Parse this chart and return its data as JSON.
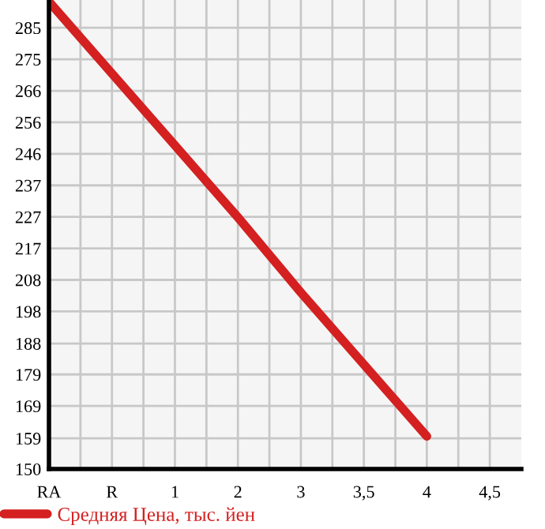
{
  "chart_data": {
    "type": "line",
    "categories": [
      "RA",
      "R",
      "1",
      "2",
      "3",
      "3,5",
      "4",
      "4,5"
    ],
    "series": [
      {
        "name": "Средняя Цена, тыс. йен",
        "color": "#d42020",
        "values": [
          293,
          271,
          249,
          227,
          204,
          182,
          160,
          null
        ]
      }
    ],
    "ylim": [
      150,
      293.5
    ],
    "yticks": [
      150,
      {
        "value": 159.4,
        "label": "159"
      },
      {
        "value": 169.29,
        "label": "169"
      },
      {
        "value": 178.93,
        "label": "179"
      },
      {
        "value": 188.4,
        "label": "188"
      },
      {
        "value": 198.21,
        "label": "198"
      },
      {
        "value": 207.86,
        "label": "208"
      },
      {
        "value": 217.5,
        "label": "217"
      },
      {
        "value": 227.14,
        "label": "227"
      },
      {
        "value": 236.79,
        "label": "237"
      },
      {
        "value": 246.43,
        "label": "246"
      },
      {
        "value": 256.07,
        "label": "256"
      },
      {
        "value": 265.71,
        "label": "266"
      },
      {
        "value": 275.36,
        "label": "275"
      },
      285
    ],
    "grid": true,
    "legend": "bottom",
    "marker": "none",
    "line_style": "solid"
  }
}
